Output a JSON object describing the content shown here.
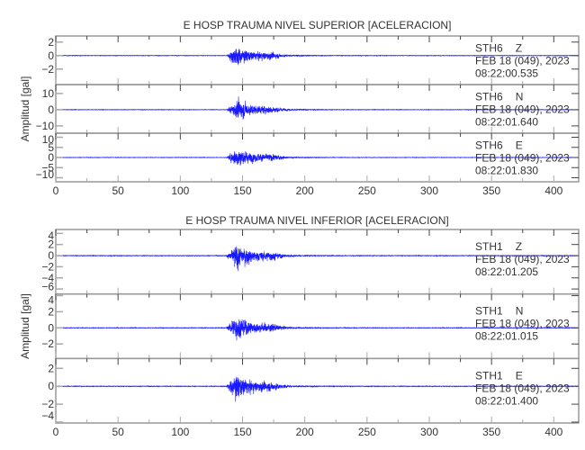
{
  "chart_data": [
    {
      "type": "line",
      "title": "E HOSP TRAUMA NIVEL SUPERIOR [ACELERACION]",
      "ylabel": "Amplitud [gal]",
      "xlabel": "",
      "xlim": [
        0,
        420
      ],
      "xticks": [
        0,
        50,
        100,
        150,
        200,
        250,
        300,
        350,
        400
      ],
      "grid": false,
      "panels": [
        {
          "station": "STH6",
          "component": "Z",
          "date": "FEB 18 (049), 2023",
          "time": "08:22:00.535",
          "ylim": [
            -4.3,
            2.9
          ],
          "yticks": [
            -2,
            0,
            2
          ],
          "onset_s": 137,
          "peak_time_s": 145,
          "peak_pos": 2.8,
          "peak_neg": -4.0,
          "color": "#0000ff"
        },
        {
          "station": "STH6",
          "component": "N",
          "date": "FEB 18 (049), 2023",
          "time": "08:22:01.640",
          "ylim": [
            -14.5,
            15.5
          ],
          "yticks": [
            -10,
            0,
            10
          ],
          "onset_s": 137,
          "peak_time_s": 147,
          "peak_pos": 14.0,
          "peak_neg": -13.5,
          "color": "#0000ff"
        },
        {
          "station": "STH6",
          "component": "E",
          "date": "FEB 18 (049), 2023",
          "time": "08:22:01.830",
          "ylim": [
            -12,
            12
          ],
          "yticks": [
            -10,
            -5,
            0,
            5,
            10
          ],
          "onset_s": 137,
          "peak_time_s": 146,
          "peak_pos": 11.0,
          "peak_neg": -11.0,
          "color": "#0000ff"
        }
      ]
    },
    {
      "type": "line",
      "title": "E HOSP TRAUMA NIVEL INFERIOR [ACELERACION]",
      "ylabel": "Amplitud [gal]",
      "xlabel": "",
      "xlim": [
        0,
        420
      ],
      "xticks": [
        0,
        50,
        100,
        150,
        200,
        250,
        300,
        350,
        400
      ],
      "grid": false,
      "panels": [
        {
          "station": "STH1",
          "component": "Z",
          "date": "FEB 18 (049), 2023",
          "time": "08:22:01.205",
          "ylim": [
            -6.9,
            4.7
          ],
          "yticks": [
            -6,
            -4,
            -2,
            0,
            2,
            4
          ],
          "onset_s": 137,
          "peak_time_s": 145,
          "peak_pos": 4.0,
          "peak_neg": -6.5,
          "color": "#0000ff"
        },
        {
          "station": "STH1",
          "component": "N",
          "date": "FEB 18 (049), 2023",
          "time": "08:22:01.015",
          "ylim": [
            -3.8,
            4.2
          ],
          "yticks": [
            -2,
            0,
            2,
            4
          ],
          "onset_s": 137,
          "peak_time_s": 145,
          "peak_pos": 3.6,
          "peak_neg": -3.3,
          "color": "#0000ff"
        },
        {
          "station": "STH1",
          "component": "E",
          "date": "FEB 18 (049), 2023",
          "time": "08:22:01.400",
          "ylim": [
            -4.1,
            3.1
          ],
          "yticks": [
            -4,
            -2,
            0,
            2
          ],
          "onset_s": 137,
          "peak_time_s": 144,
          "peak_pos": 2.8,
          "peak_neg": -3.9,
          "color": "#0000ff"
        }
      ]
    }
  ]
}
